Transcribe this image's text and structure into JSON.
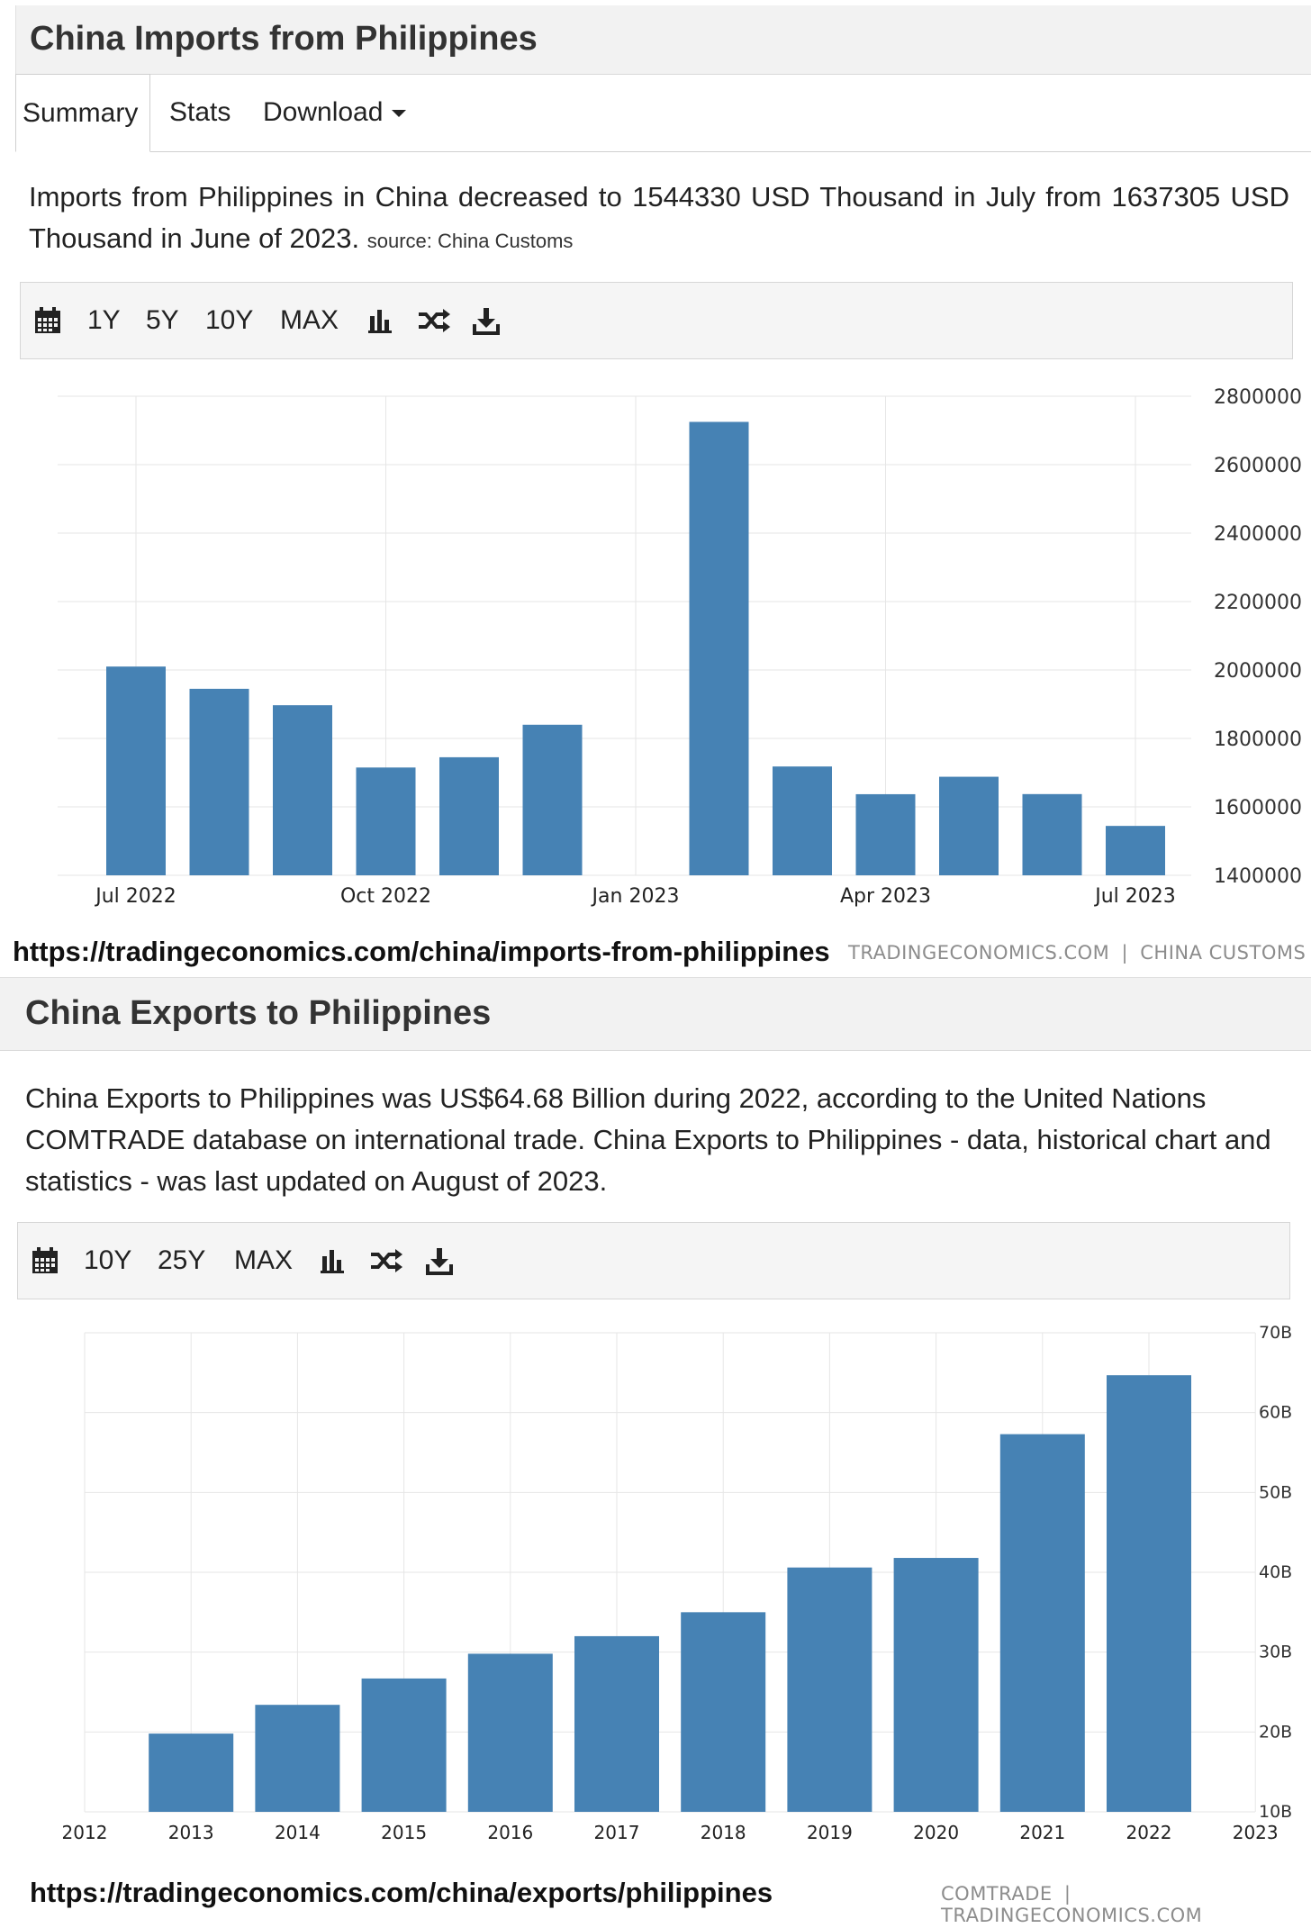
{
  "imports": {
    "title": "China Imports from Philippines",
    "tabs": [
      "Summary",
      "Stats",
      "Download"
    ],
    "description": "Imports from Philippines in China decreased to 1544330 USD Thousand in July from 1637305 USD Thousand in June of 2023.",
    "source": "source: China Customs",
    "toolbar": [
      "1Y",
      "5Y",
      "10Y",
      "MAX"
    ],
    "url": "https://tradingeconomics.com/china/imports-from-philippines",
    "credit_left": "TRADINGECONOMICS.COM",
    "credit_sep": "|",
    "credit_right": "CHINA CUSTOMS"
  },
  "exports": {
    "title": "China Exports to Philippines",
    "description": "China Exports to Philippines was US$64.68 Billion during 2022, according to the United Nations COMTRADE database on international trade. China Exports to Philippines - data, historical chart and statistics - was last updated on August of 2023.",
    "toolbar": [
      "10Y",
      "25Y",
      "MAX"
    ],
    "url": "https://tradingeconomics.com/china/exports/philippines",
    "credit_left": "COMTRADE",
    "credit_sep": "|",
    "credit_right": "TRADINGECONOMICS.COM"
  },
  "colors": {
    "bar": "#4682b4",
    "grid": "#e6e6e6",
    "title_bg": "#f2f2f2",
    "toolbar_bg": "#f5f5f5"
  },
  "icons": [
    "calendar-icon",
    "bar-chart-icon",
    "shuffle-icon",
    "download-icon"
  ],
  "chart_data": [
    {
      "type": "bar",
      "title": "",
      "x_tick_labels": [
        "Jul 2022",
        "Oct 2022",
        "Jan 2023",
        "Apr 2023",
        "Jul 2023"
      ],
      "categories": [
        "Jul 2022",
        "Aug 2022",
        "Sep 2022",
        "Oct 2022",
        "Nov 2022",
        "Dec 2022",
        "Jan 2023",
        "Feb 2023",
        "Mar 2023",
        "Apr 2023",
        "May 2023",
        "Jun 2023",
        "Jul 2023"
      ],
      "values": [
        2010000,
        1945000,
        1897000,
        1715000,
        1745000,
        1840000,
        null,
        2725000,
        1718000,
        1637000,
        1688000,
        1637305,
        1544330
      ],
      "y_ticks": [
        1400000,
        1600000,
        1800000,
        2000000,
        2200000,
        2400000,
        2600000,
        2800000
      ],
      "ylim": [
        1400000,
        2800000
      ],
      "y_axis_side": "right",
      "grid": true
    },
    {
      "type": "bar",
      "title": "",
      "x_tick_labels": [
        "2012",
        "2013",
        "2014",
        "2015",
        "2016",
        "2017",
        "2018",
        "2019",
        "2020",
        "2021",
        "2022",
        "2023"
      ],
      "categories": [
        "2013",
        "2014",
        "2015",
        "2016",
        "2017",
        "2018",
        "2019",
        "2020",
        "2021",
        "2022"
      ],
      "values": [
        19.8,
        23.4,
        26.7,
        29.8,
        32.0,
        35.0,
        40.6,
        41.8,
        57.3,
        64.68
      ],
      "y_ticks": [
        10,
        20,
        30,
        40,
        50,
        60,
        70
      ],
      "y_tick_labels": [
        "10B",
        "20B",
        "30B",
        "40B",
        "50B",
        "60B",
        "70B"
      ],
      "ylim": [
        10,
        70
      ],
      "y_axis_side": "right",
      "grid": true
    }
  ]
}
